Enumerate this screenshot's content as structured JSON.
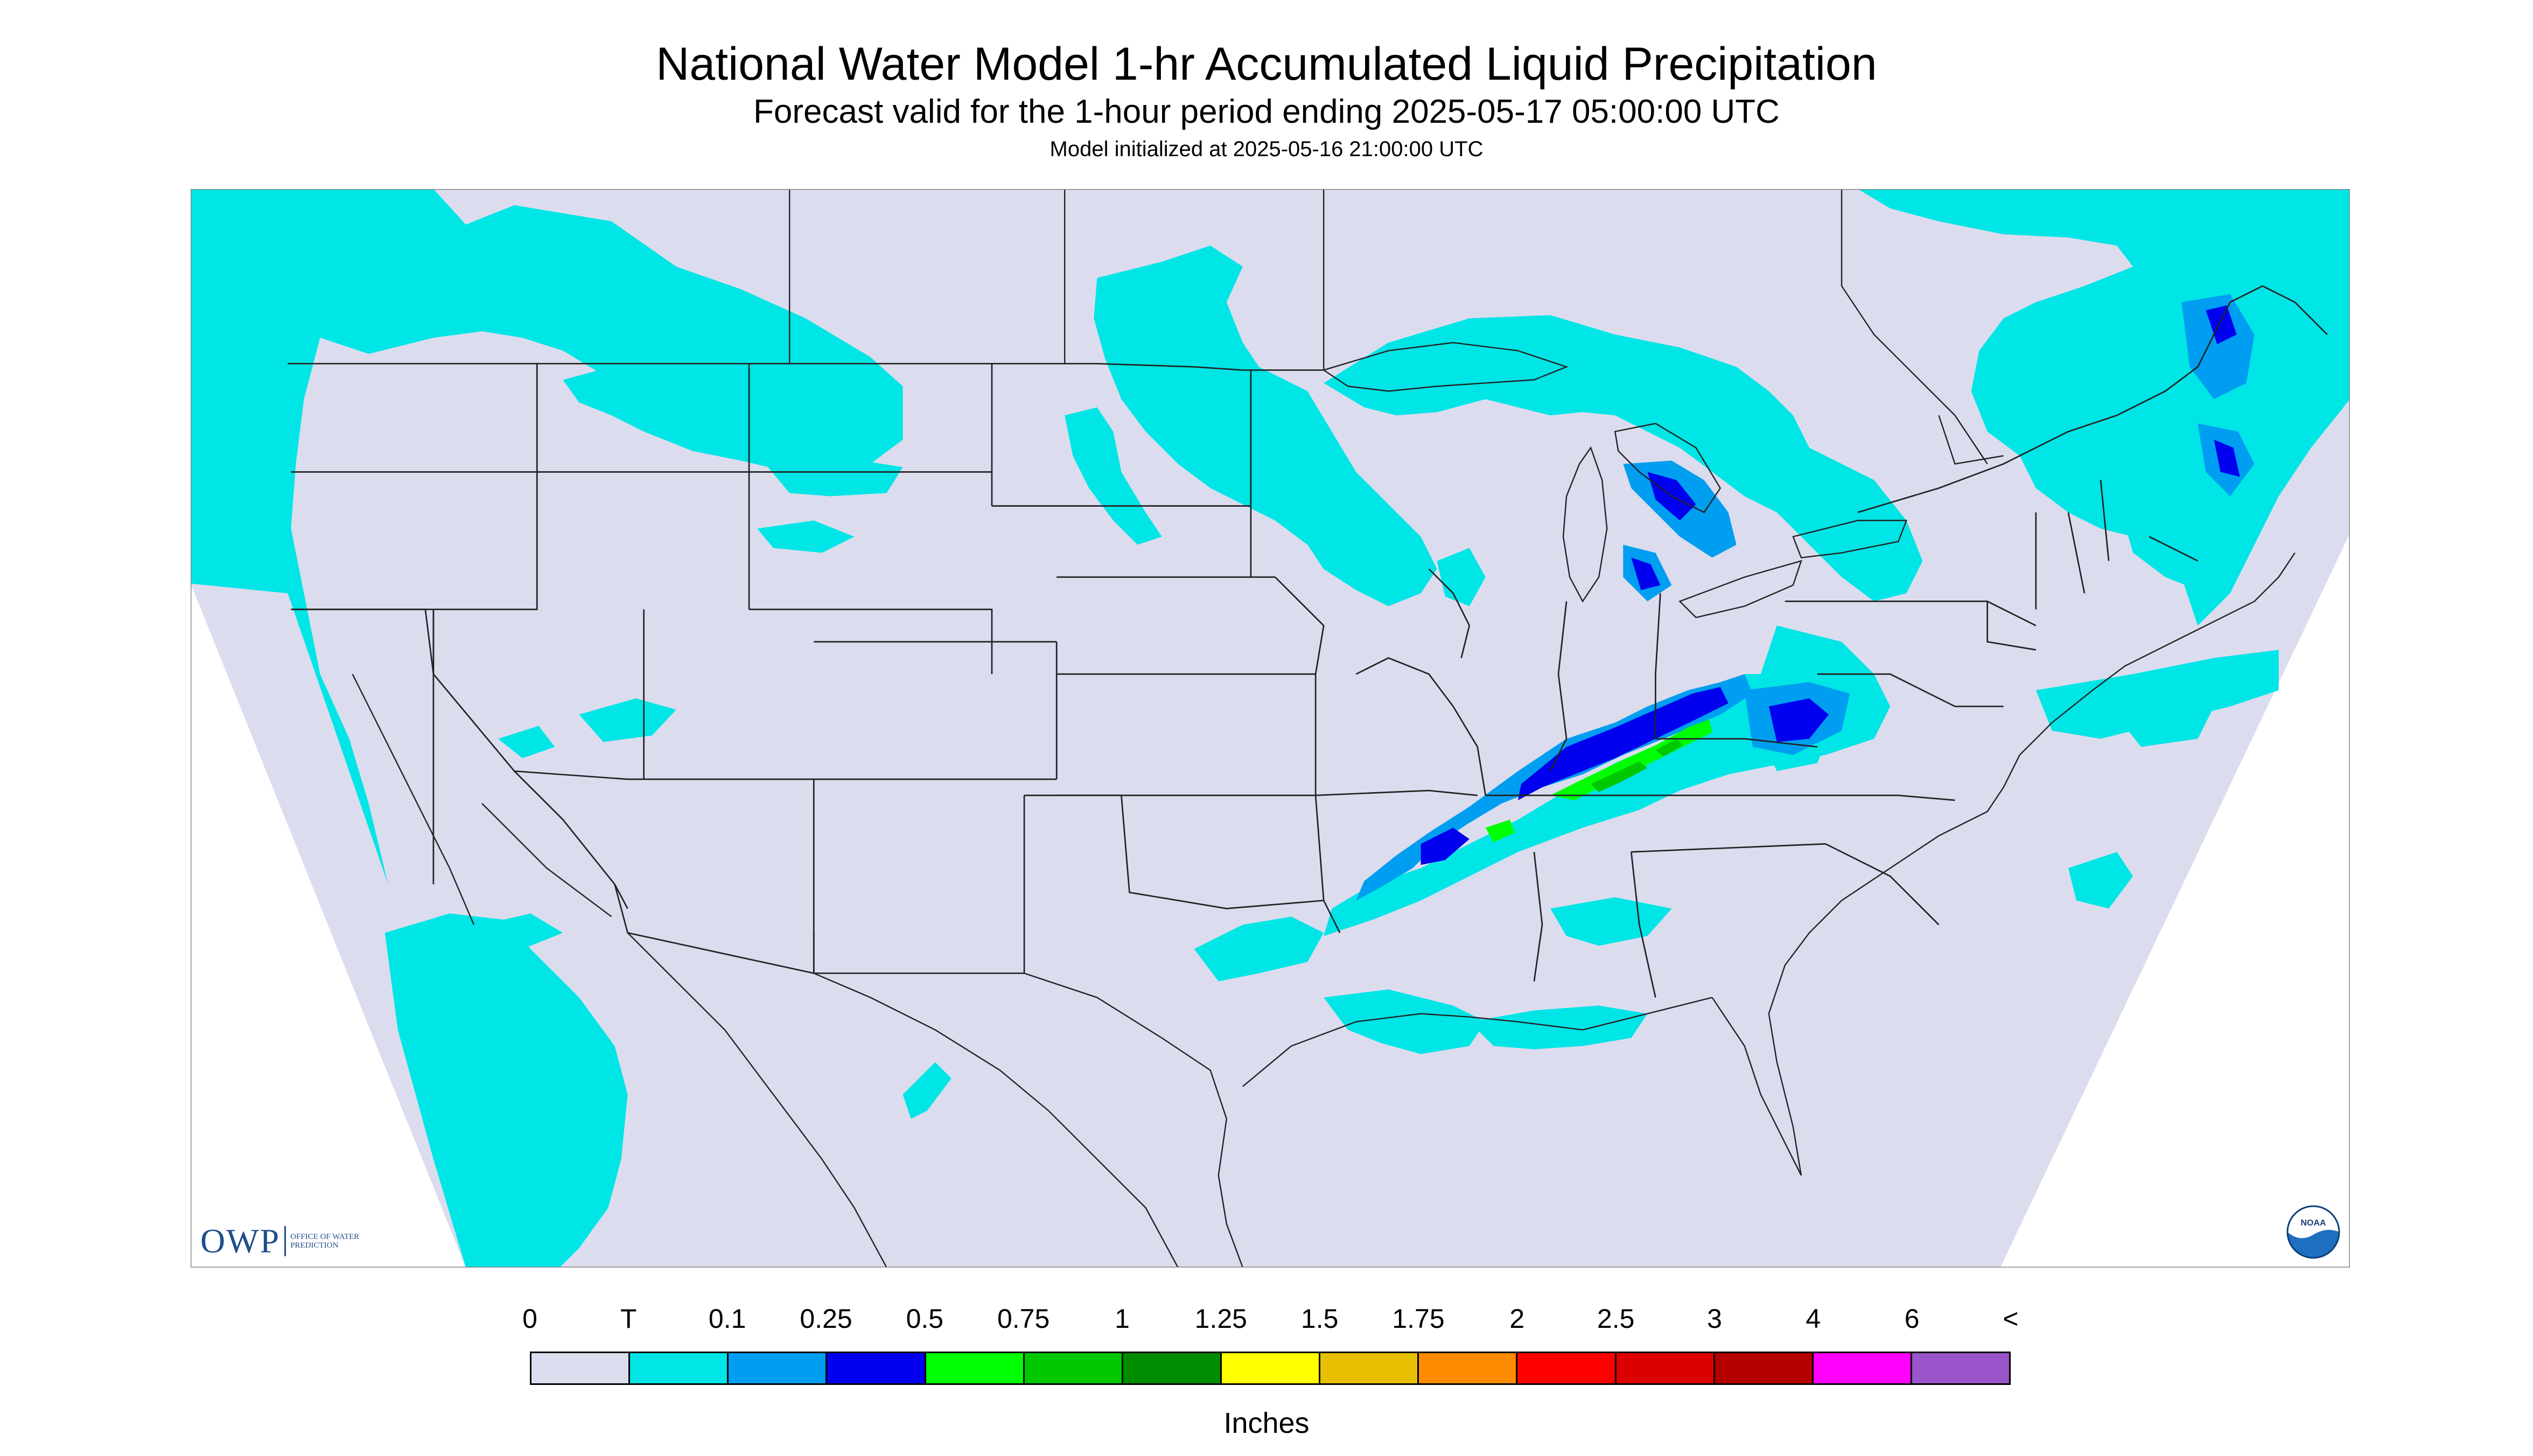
{
  "title": "National Water Model 1-hr Accumulated Liquid Precipitation",
  "subtitle": "Forecast valid for the 1-hour period ending 2025-05-17 05:00:00 UTC",
  "init_line": "Model initialized at 2025-05-16 21:00:00 UTC",
  "legend": {
    "labels": [
      "0",
      "T",
      "0.1",
      "0.25",
      "0.5",
      "0.75",
      "1",
      "1.25",
      "1.5",
      "1.75",
      "2",
      "2.5",
      "3",
      "4",
      "6",
      "<"
    ],
    "colors": [
      "#dcdcef",
      "#00e5e5",
      "#009ef0",
      "#0000ef",
      "#00ff00",
      "#00c800",
      "#008c00",
      "#ffff00",
      "#e6c000",
      "#ff8c00",
      "#ff0000",
      "#dc0000",
      "#b40000",
      "#ff00ff",
      "#9955c9"
    ],
    "units": "Inches"
  },
  "colors": {
    "background": "#dcdcef",
    "outside": "#ffffff",
    "trace": "#00e5e5",
    "light": "#009ef0",
    "moderate": "#0000ef",
    "green": "#00ff00",
    "dark_green": "#00c800",
    "border": "#222222"
  },
  "logos": {
    "owp_mark": "OWP",
    "owp_text": "OFFICE OF WATER PREDICTION",
    "noaa": "NOAA"
  }
}
